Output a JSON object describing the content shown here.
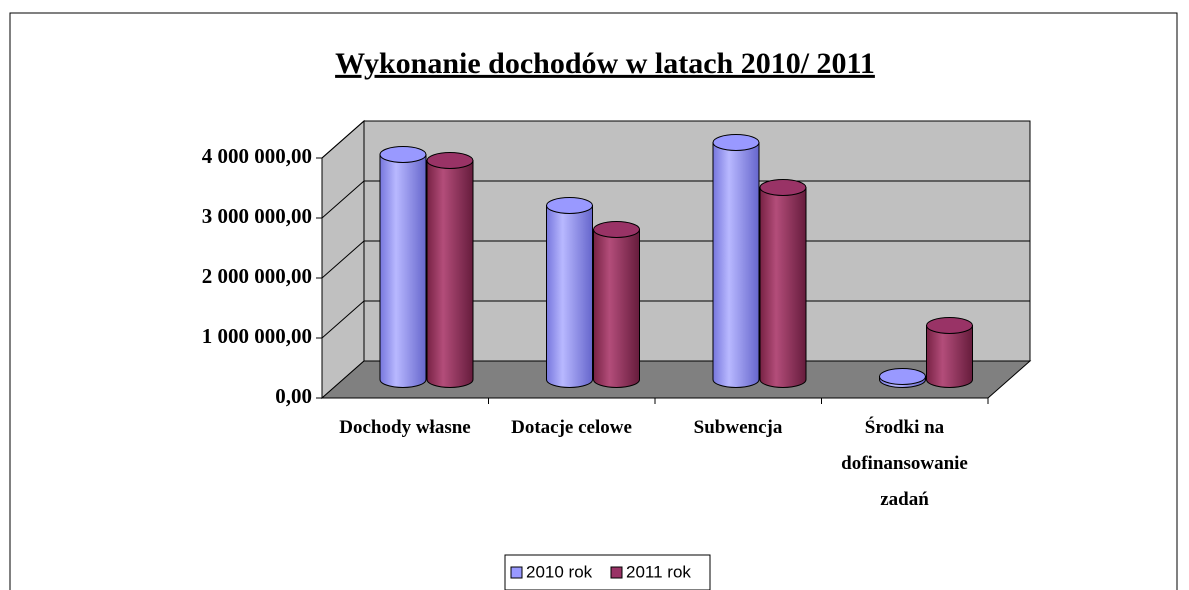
{
  "chart_data": {
    "type": "bar3d",
    "title": "Wykonanie dochodów w latach 2010/ 2011",
    "categories": [
      "Dochody własne",
      "Dotacje celowe",
      "Subwencja",
      "Środki na dofinansowanie zadań"
    ],
    "series": [
      {
        "name": "2010 rok",
        "color": "#9999ff",
        "values": [
          3750000,
          2900000,
          3950000,
          50000
        ]
      },
      {
        "name": "2011 rok",
        "color": "#993366",
        "values": [
          3650000,
          2500000,
          3200000,
          900000
        ]
      }
    ],
    "ylim": [
      0,
      4000000
    ],
    "yticks": [
      {
        "value": 0,
        "label": "0,00"
      },
      {
        "value": 1000000,
        "label": "1 000 000,00"
      },
      {
        "value": 2000000,
        "label": "2 000 000,00"
      },
      {
        "value": 3000000,
        "label": "3 000 000,00"
      },
      {
        "value": 4000000,
        "label": "4 000 000,00"
      }
    ],
    "grid": true,
    "legend": "bottom"
  }
}
